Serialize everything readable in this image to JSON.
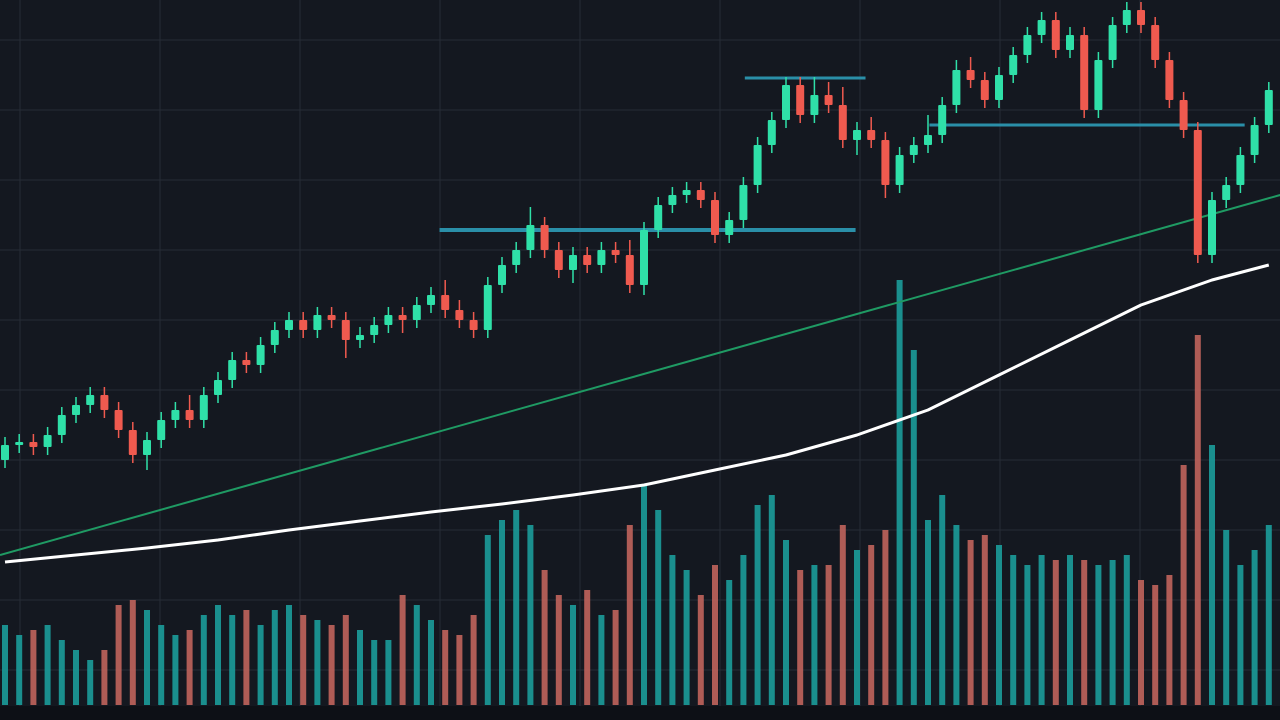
{
  "chart_data": {
    "type": "candlestick",
    "ylim": [
      0,
      72
    ],
    "volume_ylim": [
      0,
      705
    ],
    "up_color": "#2fe0a8",
    "down_color": "#ef5a4f",
    "volume_up_color": "#1b9c9a",
    "volume_down_color": "#c0645c",
    "ohlc": [
      [
        26,
        28.3,
        25.2,
        27.5
      ],
      [
        27.5,
        28.6,
        26.7,
        27.8
      ],
      [
        27.8,
        28.6,
        26.5,
        27.3
      ],
      [
        27.3,
        29.3,
        26.5,
        28.5
      ],
      [
        28.5,
        31.3,
        27.7,
        30.5
      ],
      [
        30.5,
        32.3,
        29.7,
        31.5
      ],
      [
        31.5,
        33.3,
        30.7,
        32.5
      ],
      [
        32.5,
        33.3,
        30.2,
        31
      ],
      [
        31,
        31.8,
        28.2,
        29
      ],
      [
        29,
        29.8,
        25.7,
        26.5
      ],
      [
        26.5,
        28.8,
        25,
        28
      ],
      [
        28,
        30.8,
        27.2,
        30
      ],
      [
        30,
        31.8,
        29.2,
        31
      ],
      [
        31,
        32.5,
        29.2,
        30
      ],
      [
        30,
        33.3,
        29.2,
        32.5
      ],
      [
        32.5,
        34.8,
        31.7,
        34
      ],
      [
        34,
        36.8,
        33.2,
        36
      ],
      [
        36,
        36.8,
        34.7,
        35.5
      ],
      [
        35.5,
        38.3,
        34.7,
        37.5
      ],
      [
        37.5,
        39.8,
        36.7,
        39
      ],
      [
        39,
        40.8,
        38.2,
        40
      ],
      [
        40,
        40.8,
        38.2,
        39
      ],
      [
        39,
        41.3,
        38.2,
        40.5
      ],
      [
        40.5,
        41.3,
        39.2,
        40
      ],
      [
        40,
        40.8,
        36.2,
        38
      ],
      [
        38,
        39.3,
        37.2,
        38.5
      ],
      [
        38.5,
        40.3,
        37.7,
        39.5
      ],
      [
        39.5,
        41.3,
        38.7,
        40.5
      ],
      [
        40.5,
        41.3,
        38.7,
        40
      ],
      [
        40,
        42.3,
        39.2,
        41.5
      ],
      [
        41.5,
        43.3,
        40.7,
        42.5
      ],
      [
        42.5,
        44,
        40.2,
        41
      ],
      [
        41,
        42,
        39.2,
        40
      ],
      [
        40,
        40.8,
        38.2,
        39
      ],
      [
        39,
        44.3,
        38.2,
        43.5
      ],
      [
        43.5,
        46.3,
        42.7,
        45.5
      ],
      [
        45.5,
        47.8,
        44.7,
        47
      ],
      [
        47,
        51.3,
        46.2,
        49.5
      ],
      [
        49.5,
        50.3,
        46.2,
        47
      ],
      [
        47,
        47.8,
        44.2,
        45
      ],
      [
        45,
        47.3,
        43.7,
        46.5
      ],
      [
        46.5,
        47.3,
        44.7,
        45.5
      ],
      [
        45.5,
        47.8,
        44.7,
        47
      ],
      [
        47,
        47.8,
        45.7,
        46.5
      ],
      [
        46.5,
        48,
        42.7,
        43.5
      ],
      [
        43.5,
        49.8,
        42.5,
        49
      ],
      [
        49,
        52.3,
        48.2,
        51.5
      ],
      [
        51.5,
        53.3,
        50.7,
        52.5
      ],
      [
        52.5,
        53.8,
        51.7,
        53
      ],
      [
        53,
        53.8,
        51.2,
        52
      ],
      [
        52,
        52.8,
        47.7,
        48.5
      ],
      [
        48.5,
        50.8,
        47.7,
        50
      ],
      [
        50,
        54.3,
        49.2,
        53.5
      ],
      [
        53.5,
        58.3,
        52.7,
        57.5
      ],
      [
        57.5,
        60.8,
        56.7,
        60
      ],
      [
        60,
        64.3,
        59.2,
        63.5
      ],
      [
        63.5,
        64.3,
        59.7,
        60.5
      ],
      [
        60.5,
        64.3,
        59.7,
        62.5
      ],
      [
        62.5,
        63.8,
        60.7,
        61.5
      ],
      [
        61.5,
        63.3,
        57.2,
        58
      ],
      [
        58,
        59.8,
        56.5,
        59
      ],
      [
        59,
        60.3,
        57.2,
        58
      ],
      [
        58,
        58.8,
        52.2,
        53.5
      ],
      [
        53.5,
        57.3,
        52.7,
        56.5
      ],
      [
        56.5,
        58.3,
        55.7,
        57.5
      ],
      [
        57.5,
        60.5,
        56.7,
        58.5
      ],
      [
        58.5,
        62.3,
        57.7,
        61.5
      ],
      [
        61.5,
        66,
        60.7,
        65
      ],
      [
        65,
        66.3,
        63.2,
        64
      ],
      [
        64,
        64.8,
        61.2,
        62
      ],
      [
        62,
        65.3,
        61.2,
        64.5
      ],
      [
        64.5,
        67.3,
        63.7,
        66.5
      ],
      [
        66.5,
        69.3,
        65.7,
        68.5
      ],
      [
        68.5,
        70.8,
        67.7,
        70
      ],
      [
        70,
        70.8,
        66.2,
        67
      ],
      [
        67,
        69.3,
        66.2,
        68.5
      ],
      [
        68.5,
        69.3,
        60.2,
        61
      ],
      [
        61,
        66.8,
        60.2,
        66
      ],
      [
        66,
        70.3,
        65.2,
        69.5
      ],
      [
        69.5,
        71.8,
        68.7,
        71
      ],
      [
        71,
        71.8,
        68.7,
        69.5
      ],
      [
        69.5,
        70.3,
        65.2,
        66
      ],
      [
        66,
        66.8,
        61.2,
        62
      ],
      [
        62,
        62.8,
        58.2,
        59
      ],
      [
        59,
        59.8,
        45.7,
        46.5
      ],
      [
        46.5,
        52.8,
        45.7,
        52
      ],
      [
        52,
        54.3,
        51.2,
        53.5
      ],
      [
        53.5,
        57.3,
        52.7,
        56.5
      ],
      [
        56.5,
        60.3,
        55.7,
        59.5
      ],
      [
        59.5,
        63.8,
        58.7,
        63
      ]
    ],
    "volume": [
      80,
      70,
      75,
      80,
      65,
      55,
      45,
      55,
      100,
      105,
      95,
      80,
      70,
      75,
      90,
      100,
      90,
      95,
      80,
      95,
      100,
      90,
      85,
      80,
      90,
      75,
      65,
      65,
      110,
      100,
      85,
      75,
      70,
      90,
      170,
      185,
      195,
      180,
      135,
      110,
      100,
      115,
      90,
      95,
      180,
      220,
      195,
      150,
      135,
      110,
      140,
      125,
      150,
      200,
      210,
      165,
      135,
      140,
      140,
      180,
      155,
      160,
      175,
      425,
      355,
      185,
      210,
      180,
      165,
      170,
      160,
      150,
      140,
      150,
      145,
      150,
      145,
      140,
      145,
      150,
      125,
      120,
      130,
      240,
      370,
      260,
      175,
      140,
      155,
      180
    ],
    "ma": {
      "color": "#ffffff",
      "x": [
        0,
        5,
        10,
        15,
        20,
        25,
        30,
        35,
        40,
        45,
        50,
        55,
        60,
        65,
        70,
        75,
        80,
        85,
        89
      ],
      "values": [
        15.8,
        16.5,
        17.2,
        18,
        19,
        19.9,
        20.8,
        21.6,
        22.5,
        23.5,
        25,
        26.5,
        28.5,
        31,
        34.5,
        38,
        41.5,
        44,
        45.5
      ]
    },
    "trend": {
      "color": "#1f9a63",
      "x": [
        -0.35,
        89.8
      ],
      "values": [
        16.5,
        52.5
      ]
    },
    "levels": [
      {
        "x": [
          30.6,
          59.9
        ],
        "value": 49
      },
      {
        "x": [
          52.1,
          60.6
        ],
        "value": 64.2
      },
      {
        "x": [
          65.1,
          87.3
        ],
        "value": 59.5
      }
    ],
    "level_color": "#2a8fa8"
  }
}
